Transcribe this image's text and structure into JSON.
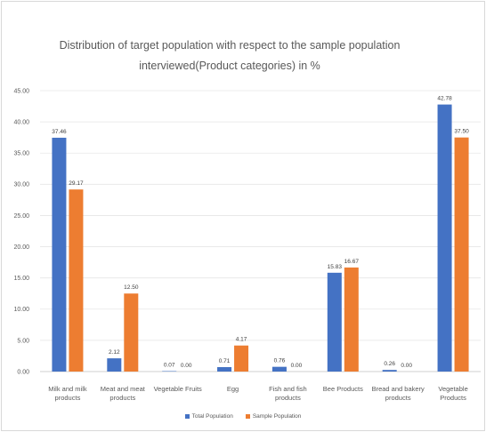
{
  "chart_data": {
    "type": "bar",
    "title": "Distribution of target population with respect to the sample population interviewed(Product categories) in %",
    "xlabel": "",
    "ylabel": "",
    "categories": [
      "Milk and milk products",
      "Meat and meat products",
      "Vegetable Fruits",
      "Egg",
      "Fish and fish products",
      "Bee Products",
      "Bread and bakery products",
      "Vegetable Products"
    ],
    "series": [
      {
        "name": "Total Population",
        "color": "#4472C4",
        "values": [
          37.46,
          2.12,
          0.07,
          0.71,
          0.76,
          15.83,
          0.26,
          42.78
        ],
        "data_labels": [
          "37.46",
          "2.12",
          "0.07",
          "0.71",
          "0.76",
          "15.83",
          "0.26",
          "42.78"
        ]
      },
      {
        "name": "Sample Population",
        "color": "#ED7D31",
        "values": [
          29.17,
          12.5,
          0.0,
          4.17,
          0.0,
          16.67,
          0.0,
          37.5
        ],
        "data_labels": [
          "29.17",
          "12.50",
          "0.00",
          "4.17",
          "0.00",
          "16.67",
          "0.00",
          "37.50"
        ]
      }
    ],
    "y_ticks": [
      "0.00",
      "5.00",
      "10.00",
      "15.00",
      "20.00",
      "25.00",
      "30.00",
      "35.00",
      "40.00",
      "45.00"
    ],
    "ylim": [
      0,
      45
    ],
    "grid": true,
    "legend": "bottom"
  }
}
